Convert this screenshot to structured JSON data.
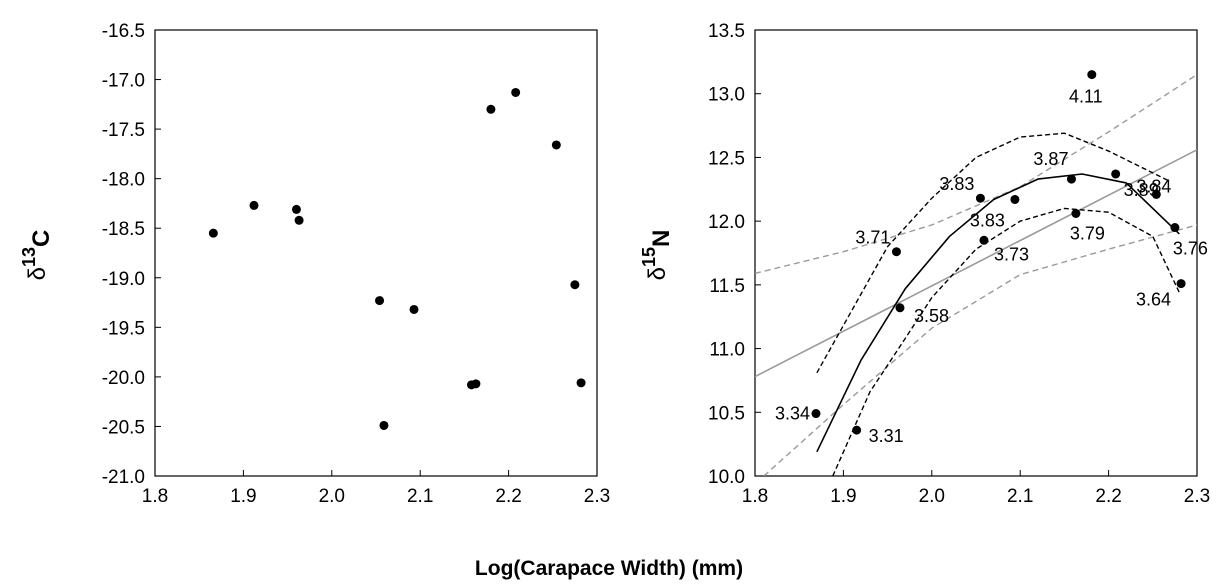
{
  "figure": {
    "xlabel": "Log(Carapace Width) (mm)"
  },
  "chart_data": [
    {
      "type": "scatter",
      "ylabel_symbol": "δ",
      "ylabel_superscript": "13",
      "ylabel_subscript": "C",
      "xlim": [
        1.8,
        2.3
      ],
      "ylim": [
        -21.0,
        -16.5
      ],
      "xticks": [
        "1.8",
        "1.9",
        "2.0",
        "2.1",
        "2.2",
        "2.3"
      ],
      "yticks": [
        "-21.0",
        "-20.5",
        "-20.0",
        "-19.5",
        "-19.0",
        "-18.5",
        "-18.0",
        "-17.5",
        "-17.0",
        "-16.5"
      ],
      "points": [
        {
          "x": 1.866,
          "y": -18.55
        },
        {
          "x": 1.912,
          "y": -18.27
        },
        {
          "x": 1.96,
          "y": -18.31
        },
        {
          "x": 1.963,
          "y": -18.42
        },
        {
          "x": 2.054,
          "y": -19.23
        },
        {
          "x": 2.059,
          "y": -20.49
        },
        {
          "x": 2.093,
          "y": -19.32
        },
        {
          "x": 2.158,
          "y": -20.08
        },
        {
          "x": 2.163,
          "y": -20.07
        },
        {
          "x": 2.18,
          "y": -17.3
        },
        {
          "x": 2.208,
          "y": -17.13
        },
        {
          "x": 2.254,
          "y": -17.66
        },
        {
          "x": 2.275,
          "y": -19.07
        },
        {
          "x": 2.282,
          "y": -20.06
        }
      ]
    },
    {
      "type": "scatter",
      "ylabel_symbol": "δ",
      "ylabel_superscript": "15",
      "ylabel_subscript": "N",
      "xlim": [
        1.8,
        2.3
      ],
      "ylim": [
        10.0,
        13.5
      ],
      "xticks": [
        "1.8",
        "1.9",
        "2.0",
        "2.1",
        "2.2",
        "2.3"
      ],
      "yticks": [
        "10.0",
        "10.5",
        "11.0",
        "11.5",
        "12.0",
        "12.5",
        "13.0",
        "13.5"
      ],
      "points": [
        {
          "x": 1.869,
          "y": 10.49,
          "label": "3.34"
        },
        {
          "x": 1.915,
          "y": 10.36,
          "label": "3.31"
        },
        {
          "x": 1.96,
          "y": 11.76,
          "label": "3.71"
        },
        {
          "x": 1.964,
          "y": 11.32,
          "label": "3.58"
        },
        {
          "x": 2.055,
          "y": 12.18,
          "label": "3.83"
        },
        {
          "x": 2.059,
          "y": 11.85,
          "label": "3.73"
        },
        {
          "x": 2.094,
          "y": 12.17,
          "label": "3.83"
        },
        {
          "x": 2.158,
          "y": 12.33,
          "label": "3.87"
        },
        {
          "x": 2.163,
          "y": 12.06,
          "label": "3.79"
        },
        {
          "x": 2.181,
          "y": 13.15,
          "label": "4.11"
        },
        {
          "x": 2.208,
          "y": 12.37,
          "label": "3.89"
        },
        {
          "x": 2.254,
          "y": 12.21,
          "label": "3.84"
        },
        {
          "x": 2.275,
          "y": 11.95,
          "label": "3.76"
        },
        {
          "x": 2.282,
          "y": 11.51,
          "label": "3.64"
        }
      ],
      "fits": [
        {
          "kind": "linear",
          "style": "gray-solid",
          "x": [
            1.8,
            2.3
          ],
          "y": [
            10.78,
            12.56
          ]
        },
        {
          "kind": "linear-ci",
          "style": "gray-dashed",
          "x": [
            1.8,
            1.9,
            2.0,
            2.1,
            2.2,
            2.3
          ],
          "y": [
            11.59,
            11.76,
            11.97,
            12.27,
            12.7,
            13.15
          ]
        },
        {
          "kind": "linear-ci",
          "style": "gray-dashed",
          "x": [
            1.81,
            1.9,
            2.0,
            2.1,
            2.2,
            2.3
          ],
          "y": [
            10.0,
            10.56,
            11.16,
            11.58,
            11.78,
            11.97
          ]
        },
        {
          "kind": "quadratic",
          "style": "black-solid",
          "x": [
            1.87,
            1.92,
            1.97,
            2.02,
            2.07,
            2.12,
            2.17,
            2.22,
            2.28
          ],
          "y": [
            10.19,
            10.91,
            11.47,
            11.88,
            12.17,
            12.33,
            12.37,
            12.3,
            11.9
          ]
        },
        {
          "kind": "quadratic-ci",
          "style": "black-dashed",
          "x": [
            1.87,
            1.95,
            2.0,
            2.05,
            2.1,
            2.15,
            2.2,
            2.27
          ],
          "y": [
            10.81,
            11.8,
            12.18,
            12.5,
            12.66,
            12.69,
            12.55,
            12.31
          ]
        },
        {
          "kind": "quadratic-ci",
          "style": "black-dashed",
          "x": [
            1.888,
            1.93,
            1.97,
            2.0,
            2.05,
            2.1,
            2.15,
            2.2,
            2.25,
            2.28
          ],
          "y": [
            10.0,
            10.66,
            11.08,
            11.4,
            11.78,
            12.0,
            12.1,
            12.07,
            11.88,
            11.44
          ]
        }
      ]
    }
  ]
}
